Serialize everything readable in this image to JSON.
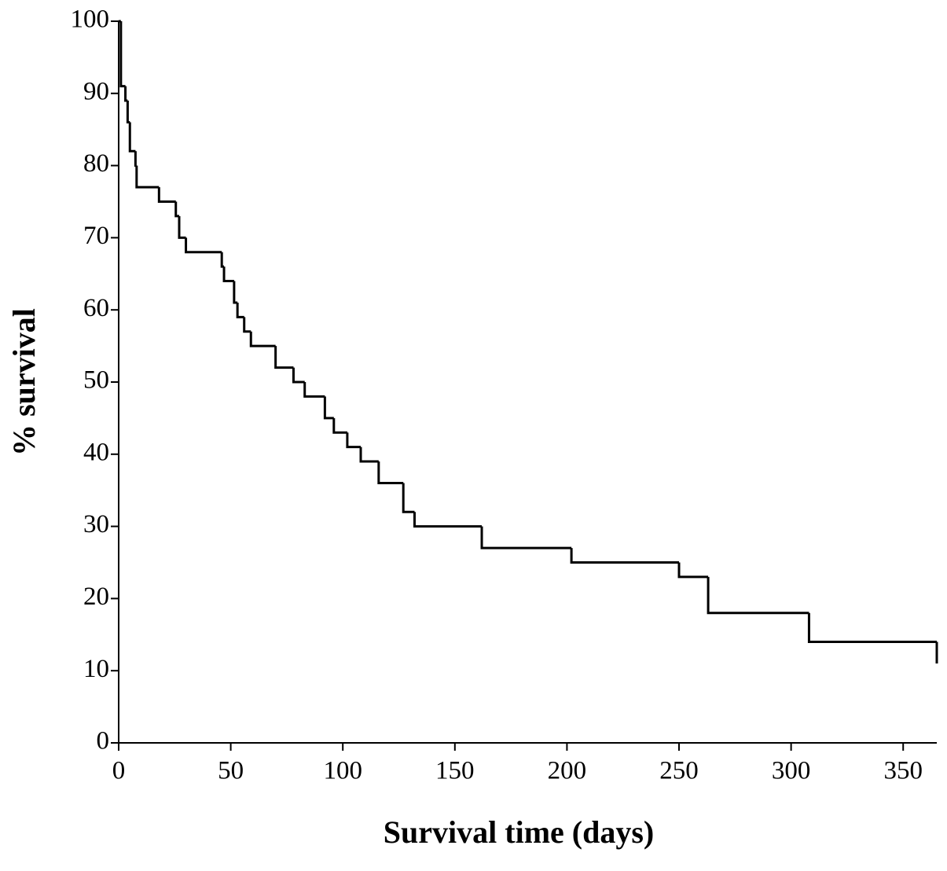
{
  "chart_data": {
    "type": "step",
    "x_label": "Survival time (days)",
    "y_label": "% survival",
    "x": [
      0,
      1,
      3,
      4,
      5,
      7.5,
      8,
      18,
      25.5,
      27,
      30,
      46,
      47,
      51.5,
      53,
      56,
      59,
      70,
      78,
      83,
      92,
      96,
      102,
      108,
      116,
      127,
      132,
      162,
      202,
      250,
      263,
      308,
      365
    ],
    "values": [
      100,
      91,
      89,
      86,
      82,
      80,
      77,
      75,
      73,
      70,
      68,
      66,
      64,
      61,
      59,
      57,
      55,
      52,
      50,
      48,
      45,
      43,
      41,
      39,
      36,
      32,
      30,
      27,
      25,
      23,
      18,
      14,
      11
    ],
    "color": "#000000",
    "xlim": [
      0,
      365
    ],
    "ylim": [
      0,
      100
    ],
    "xticks": [
      0,
      50,
      100,
      150,
      200,
      250,
      300,
      350
    ],
    "yticks": [
      0,
      10,
      20,
      30,
      40,
      50,
      60,
      70,
      80,
      90,
      100
    ]
  }
}
